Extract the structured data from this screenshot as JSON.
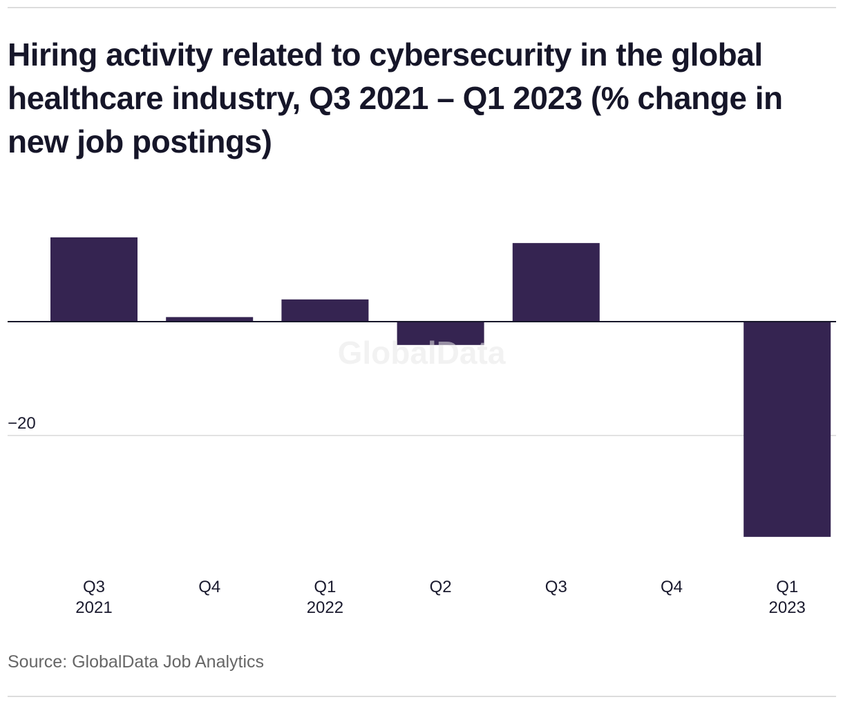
{
  "chart_data": {
    "type": "bar",
    "title": "Hiring activity related to cybersecurity in the global healthcare industry, Q3 2021 – Q1 2023 (% change in new job postings)",
    "xlabel": "",
    "ylabel": "",
    "categories": [
      {
        "quarter": "Q3",
        "year": "2021"
      },
      {
        "quarter": "Q4",
        "year": ""
      },
      {
        "quarter": "Q1",
        "year": "2022"
      },
      {
        "quarter": "Q2",
        "year": ""
      },
      {
        "quarter": "Q3",
        "year": ""
      },
      {
        "quarter": "Q4",
        "year": ""
      },
      {
        "quarter": "Q1",
        "year": "2023"
      }
    ],
    "values": [
      14.8,
      0.8,
      3.9,
      -4.1,
      13.8,
      0,
      -37.8
    ],
    "ylim": [
      -40,
      20
    ],
    "yticks": [
      {
        "value": -20,
        "label": "−20"
      }
    ],
    "zero_line": true,
    "grid": true,
    "legend": "none",
    "watermark": "GlobalData",
    "bar_color": "#352451",
    "source": "Source: GlobalData Job Analytics"
  }
}
